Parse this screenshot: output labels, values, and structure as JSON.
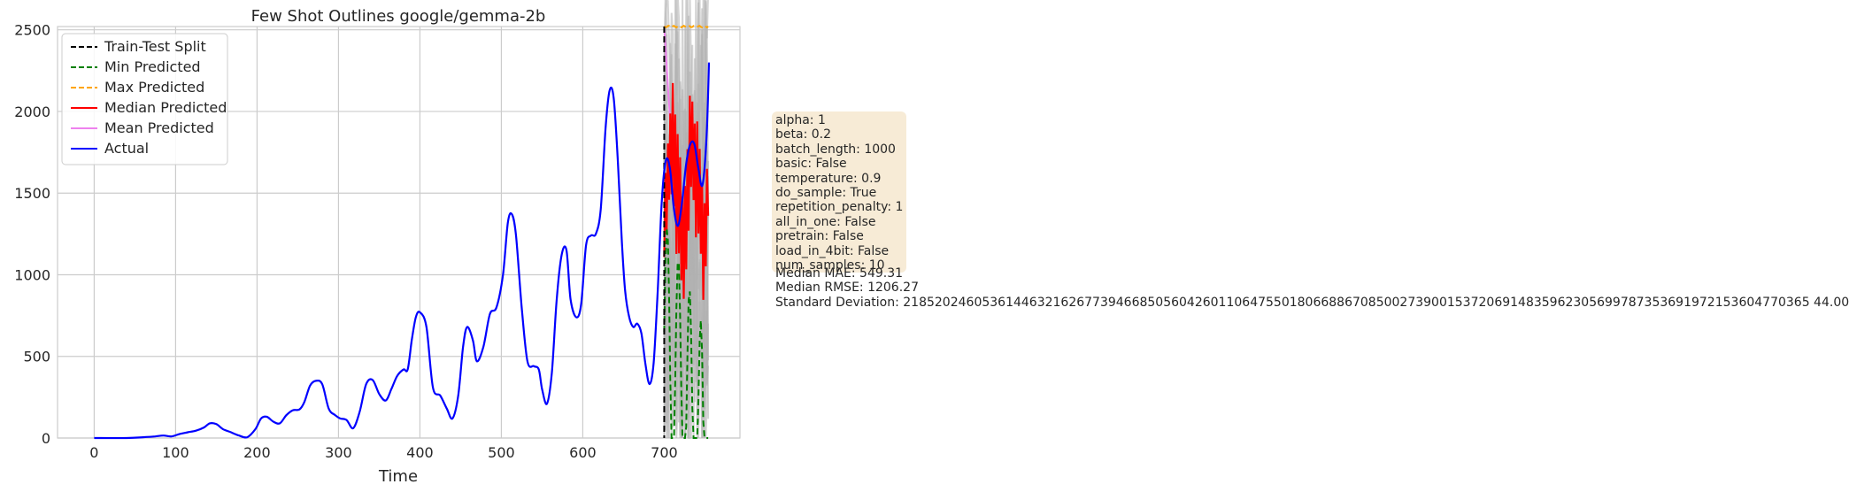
{
  "chart_data": {
    "type": "line",
    "title": "Few Shot Outlines google/gemma-2b",
    "xlabel": "Time",
    "ylabel": "",
    "xlim": [
      -45,
      793
    ],
    "ylim": [
      0,
      2520
    ],
    "xticks": [
      0,
      100,
      200,
      300,
      400,
      500,
      600,
      700
    ],
    "yticks": [
      0,
      500,
      1000,
      1500,
      2000,
      2500
    ],
    "grid": true,
    "legend_position": "top-left",
    "train_test_split": 700,
    "legend": [
      {
        "label": "Train-Test Split",
        "color": "#000000",
        "dash": true
      },
      {
        "label": "Min Predicted",
        "color": "#008000",
        "dash": true
      },
      {
        "label": "Max Predicted",
        "color": "#ffa500",
        "dash": true
      },
      {
        "label": "Median Predicted",
        "color": "#ff0000",
        "dash": false
      },
      {
        "label": "Mean Predicted",
        "color": "#ee82ee",
        "dash": false
      },
      {
        "label": "Actual",
        "color": "#0000ff",
        "dash": false
      }
    ],
    "series": [
      {
        "name": "Actual",
        "color": "#0000ff",
        "x": [
          0,
          40,
          60,
          75,
          85,
          95,
          105,
          115,
          125,
          135,
          142,
          150,
          158,
          168,
          178,
          188,
          198,
          205,
          212,
          220,
          228,
          236,
          244,
          252,
          258,
          265,
          272,
          280,
          288,
          296,
          302,
          310,
          318,
          326,
          334,
          342,
          350,
          358,
          365,
          372,
          380,
          385,
          390,
          395,
          400,
          408,
          416,
          425,
          433,
          440,
          447,
          453,
          458,
          465,
          470,
          478,
          486,
          494,
          502,
          508,
          513,
          518,
          525,
          532,
          540,
          546,
          550,
          556,
          562,
          568,
          574,
          580,
          585,
          592,
          598,
          604,
          610,
          616,
          622,
          628,
          633,
          638,
          643,
          648,
          652,
          657,
          662,
          667,
          672,
          677,
          682,
          687,
          692,
          697,
          702,
          707,
          712,
          717,
          722,
          727,
          732,
          737,
          742,
          747,
          752,
          755
        ],
        "y": [
          0,
          0,
          5,
          10,
          15,
          10,
          25,
          35,
          45,
          65,
          90,
          85,
          55,
          35,
          15,
          5,
          55,
          120,
          130,
          100,
          90,
          140,
          170,
          175,
          220,
          320,
          350,
          330,
          180,
          140,
          120,
          110,
          60,
          160,
          330,
          355,
          270,
          230,
          300,
          380,
          420,
          420,
          600,
          740,
          770,
          680,
          310,
          260,
          180,
          120,
          260,
          560,
          680,
          600,
          470,
          560,
          760,
          800,
          1000,
          1320,
          1370,
          1240,
          800,
          470,
          440,
          420,
          300,
          210,
          400,
          850,
          1120,
          1150,
          850,
          740,
          820,
          1180,
          1240,
          1250,
          1400,
          1900,
          2130,
          2080,
          1700,
          1200,
          900,
          740,
          680,
          700,
          640,
          450,
          330,
          460,
          900,
          1450,
          1700,
          1650,
          1400,
          1300,
          1450,
          1680,
          1800,
          1800,
          1650,
          1550,
          1850,
          2300
        ]
      }
    ],
    "params": [
      "alpha: 1",
      "beta: 0.2",
      "batch_length: 1000",
      "basic: False",
      "temperature: 0.9",
      "do_sample: True",
      "repetition_penalty: 1",
      "all_in_one: False",
      "pretrain: False",
      "load_in_4bit: False",
      "num_samples: 10"
    ],
    "stats": [
      "Median MAE: 549.31",
      "Median RMSE: 1206.27",
      "Standard Deviation: 2185202460536144632162677394668505604260110647550180668867085002739001537206914835962305699787353691972153604770365 44.00"
    ]
  }
}
